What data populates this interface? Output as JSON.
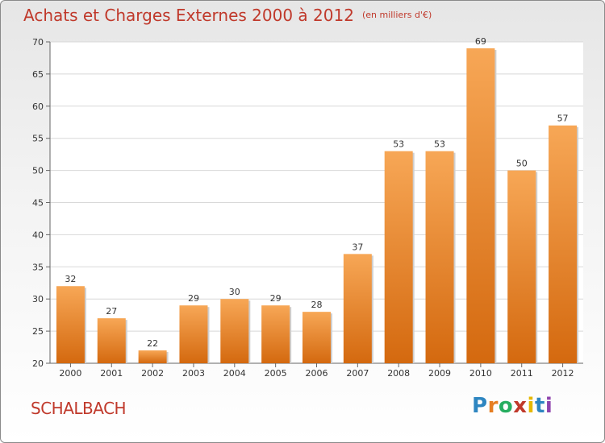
{
  "title": "Achats et Charges Externes 2000 à 2012",
  "subtitle": "(en milliers d'€)",
  "commune": "SCHALBACH",
  "logo": {
    "letters": [
      "P",
      "r",
      "o",
      "x",
      "i",
      "t",
      "i"
    ],
    "colors": [
      "#2e86c1",
      "#e67e22",
      "#27ae60",
      "#c0392b",
      "#e6b800",
      "#2e86c1",
      "#8e44ad"
    ]
  },
  "colors": {
    "title": "#c0392b",
    "bar_top": "#f7a756",
    "bar_bottom": "#d4690f"
  },
  "chart_data": {
    "type": "bar",
    "title": "Achats et Charges Externes 2000 à 2012",
    "subtitle": "(en milliers d'€)",
    "categories": [
      "2000",
      "2001",
      "2002",
      "2003",
      "2004",
      "2005",
      "2006",
      "2007",
      "2008",
      "2009",
      "2010",
      "2011",
      "2012"
    ],
    "values": [
      32,
      27,
      22,
      29,
      30,
      29,
      28,
      37,
      53,
      53,
      69,
      50,
      57
    ],
    "ylim": [
      20,
      70
    ],
    "yticks": [
      20,
      25,
      30,
      35,
      40,
      45,
      50,
      55,
      60,
      65,
      70
    ],
    "grid": true,
    "xlabel": "",
    "ylabel": ""
  }
}
